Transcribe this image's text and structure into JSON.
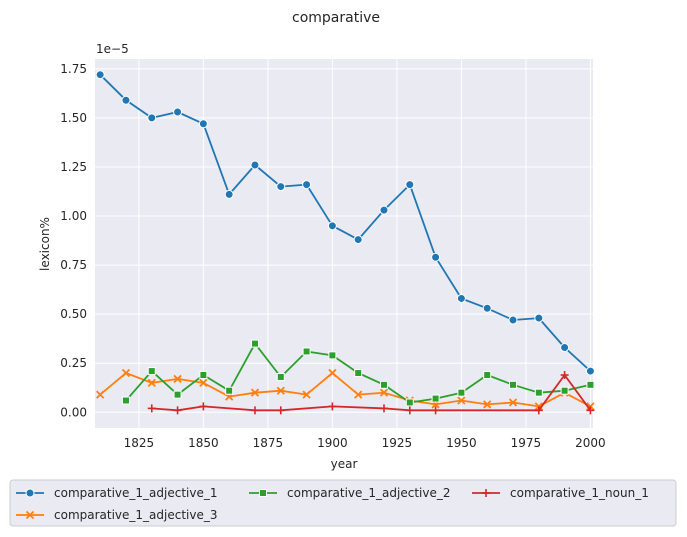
{
  "chart_data": {
    "type": "line",
    "title": "comparative",
    "xlabel": "year",
    "ylabel": "lexicon%",
    "y_offset_label": "1e−5",
    "xlim": [
      1808,
      2001
    ],
    "ylim": [
      -0.08,
      1.8
    ],
    "x_ticks": [
      1825,
      1850,
      1875,
      1900,
      1925,
      1950,
      1975,
      2000
    ],
    "y_ticks": [
      0.0,
      0.25,
      0.5,
      0.75,
      1.0,
      1.25,
      1.5,
      1.75
    ],
    "y_tick_labels": [
      "0.00",
      "0.25",
      "0.50",
      "0.75",
      "1.00",
      "1.25",
      "1.50",
      "1.75"
    ],
    "grid": true,
    "legend_position": "bottom",
    "series": [
      {
        "name": "comparative_1_adjective_1",
        "color": "#1f77b4",
        "marker": "circle",
        "x": [
          1810,
          1820,
          1830,
          1840,
          1850,
          1860,
          1870,
          1880,
          1890,
          1900,
          1910,
          1920,
          1930,
          1940,
          1950,
          1960,
          1970,
          1980,
          1990,
          2000
        ],
        "y": [
          1.72,
          1.59,
          1.5,
          1.53,
          1.47,
          1.11,
          1.26,
          1.15,
          1.16,
          0.95,
          0.88,
          1.03,
          1.16,
          0.79,
          0.58,
          0.53,
          0.47,
          0.48,
          0.33,
          0.21
        ]
      },
      {
        "name": "comparative_1_adjective_3",
        "color": "#ff7f0e",
        "marker": "x",
        "x": [
          1810,
          1820,
          1830,
          1840,
          1850,
          1860,
          1870,
          1880,
          1890,
          1900,
          1910,
          1920,
          1930,
          1940,
          1950,
          1960,
          1970,
          1980,
          1990,
          2000
        ],
        "y": [
          0.09,
          0.2,
          0.15,
          0.17,
          0.15,
          0.08,
          0.1,
          0.11,
          0.09,
          0.2,
          0.09,
          0.1,
          0.06,
          0.04,
          0.06,
          0.04,
          0.05,
          0.03,
          0.1,
          0.03
        ]
      },
      {
        "name": "comparative_1_adjective_2",
        "color": "#2ca02c",
        "marker": "square",
        "x": [
          1820,
          1830,
          1840,
          1850,
          1860,
          1870,
          1880,
          1890,
          1900,
          1910,
          1920,
          1930,
          1940,
          1950,
          1960,
          1970,
          1980,
          1990,
          2000
        ],
        "y": [
          0.06,
          0.21,
          0.09,
          0.19,
          0.11,
          0.35,
          0.18,
          0.31,
          0.29,
          0.2,
          0.14,
          0.05,
          0.07,
          0.1,
          0.19,
          0.14,
          0.1,
          0.11,
          0.14
        ]
      },
      {
        "name": "comparative_1_noun_1",
        "color": "#d62728",
        "marker": "plus",
        "x": [
          1830,
          1840,
          1850,
          1870,
          1880,
          1900,
          1920,
          1930,
          1940,
          1980,
          1990,
          2000
        ],
        "y": [
          0.02,
          0.01,
          0.03,
          0.01,
          0.01,
          0.03,
          0.02,
          0.01,
          0.01,
          0.01,
          0.19,
          0.01
        ]
      }
    ]
  }
}
